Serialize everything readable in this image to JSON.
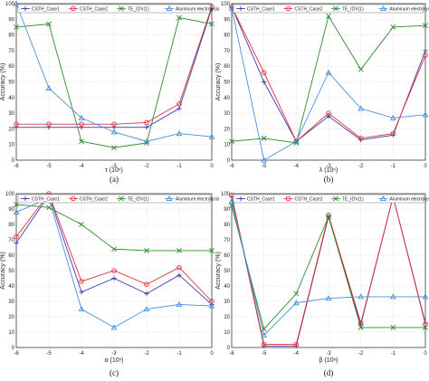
{
  "series_colors": [
    "#3b3bb0",
    "#e0303a",
    "#2e8b2e",
    "#4a90d9"
  ],
  "series_markers": [
    "plus",
    "circle",
    "x",
    "triangle"
  ],
  "chart_data": [
    {
      "type": "line",
      "caption": "(a)",
      "xlabel": "τ (10ⁿ)",
      "ylabel": "Accuracy (%)",
      "x": [
        -6,
        -5,
        -4,
        -3,
        -2,
        -1,
        0
      ],
      "xticks": [
        "-6",
        "-5",
        "-4",
        "-3",
        "-2",
        "-1",
        "0"
      ],
      "ylim": [
        0,
        100
      ],
      "yticks": [
        "0",
        "10",
        "20",
        "30",
        "40",
        "50",
        "60",
        "70",
        "80",
        "90",
        "100"
      ],
      "legend": [
        "CSTH_Case1",
        "CSTH_Case2",
        "TE_IDV(1)",
        "Aluminum electrolysis"
      ],
      "series": [
        {
          "name": "CSTH_Case1",
          "values": [
            21,
            21,
            21,
            21,
            21,
            33,
            97
          ]
        },
        {
          "name": "CSTH_Case2",
          "values": [
            23,
            23,
            23,
            23,
            24,
            36,
            98
          ]
        },
        {
          "name": "TE_IDV(1)",
          "values": [
            85,
            87,
            12,
            8,
            11,
            91,
            87
          ]
        },
        {
          "name": "Aluminum electrolysis",
          "values": [
            100,
            46,
            27,
            18,
            12,
            17,
            15
          ]
        }
      ]
    },
    {
      "type": "line",
      "caption": "(b)",
      "xlabel": "λ (10ⁿ)",
      "ylabel": "Accuracy (%)",
      "x": [
        -6,
        -5,
        -4,
        -3,
        -2,
        -1,
        0
      ],
      "xticks": [
        "-6",
        "-5",
        "-4",
        "-3",
        "-2",
        "-1",
        "0"
      ],
      "ylim": [
        0,
        100
      ],
      "yticks": [
        "0",
        "10",
        "20",
        "30",
        "40",
        "50",
        "60",
        "70",
        "80",
        "90",
        "100"
      ],
      "legend": [
        "CSTH_Case1",
        "CSTH_Case2",
        "TE_IDV(1)",
        "Aluminum electrolysis"
      ],
      "series": [
        {
          "name": "CSTH_Case1",
          "values": [
            98,
            50,
            12,
            28,
            13,
            16,
            70
          ]
        },
        {
          "name": "CSTH_Case2",
          "values": [
            98,
            56,
            12,
            30,
            14,
            17,
            67
          ]
        },
        {
          "name": "TE_IDV(1)",
          "values": [
            12,
            14,
            11,
            92,
            58,
            85,
            86
          ]
        },
        {
          "name": "Aluminum electrolysis",
          "values": [
            97,
            0,
            12,
            56,
            33,
            27,
            29
          ]
        }
      ]
    },
    {
      "type": "line",
      "caption": "(c)",
      "xlabel": "α (10ⁿ)",
      "ylabel": "Accuracy (%)",
      "x": [
        -6,
        -5,
        -4,
        -3,
        -2,
        -1,
        0
      ],
      "xticks": [
        "-6",
        "-5",
        "-4",
        "-3",
        "-2",
        "-1",
        "0"
      ],
      "ylim": [
        0,
        100
      ],
      "yticks": [
        "0",
        "10",
        "20",
        "30",
        "40",
        "50",
        "60",
        "70",
        "80",
        "90",
        "100"
      ],
      "legend": [
        "CSTH_Case1",
        "CSTH_Case2",
        "TE_IDV(1)",
        "Aluminum electrolysis"
      ],
      "series": [
        {
          "name": "CSTH_Case1",
          "values": [
            68,
            99,
            36,
            45,
            35,
            47,
            28
          ]
        },
        {
          "name": "CSTH_Case2",
          "values": [
            72,
            100,
            43,
            50,
            41,
            52,
            30
          ]
        },
        {
          "name": "TE_IDV(1)",
          "values": [
            93,
            91,
            80,
            64,
            63,
            63,
            63
          ]
        },
        {
          "name": "Aluminum electrolysis",
          "values": [
            88,
            97,
            25,
            13,
            25,
            28,
            27
          ]
        }
      ]
    },
    {
      "type": "line",
      "caption": "(d)",
      "xlabel": "β (10ⁿ)",
      "ylabel": "Accuracy (%)",
      "x": [
        -6,
        -5,
        -4,
        -3,
        -2,
        -1,
        0
      ],
      "xticks": [
        "-6",
        "-5",
        "-4",
        "-3",
        "-2",
        "-1",
        "0"
      ],
      "ylim": [
        0,
        100
      ],
      "yticks": [
        "0",
        "10",
        "20",
        "30",
        "40",
        "50",
        "60",
        "70",
        "80",
        "90",
        "100"
      ],
      "legend": [
        "CSTH_Case1",
        "CSTH_Case2",
        "TE_IDV(1)",
        "Aluminum electrolysis"
      ],
      "series": [
        {
          "name": "CSTH_Case1",
          "values": [
            98,
            1,
            1,
            85,
            15,
            98,
            16
          ]
        },
        {
          "name": "CSTH_Case2",
          "values": [
            99,
            2,
            2,
            86,
            16,
            98,
            15
          ]
        },
        {
          "name": "TE_IDV(1)",
          "values": [
            92,
            12,
            35,
            85,
            13,
            13,
            13
          ]
        },
        {
          "name": "Aluminum electrolysis",
          "values": [
            95,
            8,
            29,
            32,
            33,
            33,
            33
          ]
        }
      ]
    }
  ]
}
